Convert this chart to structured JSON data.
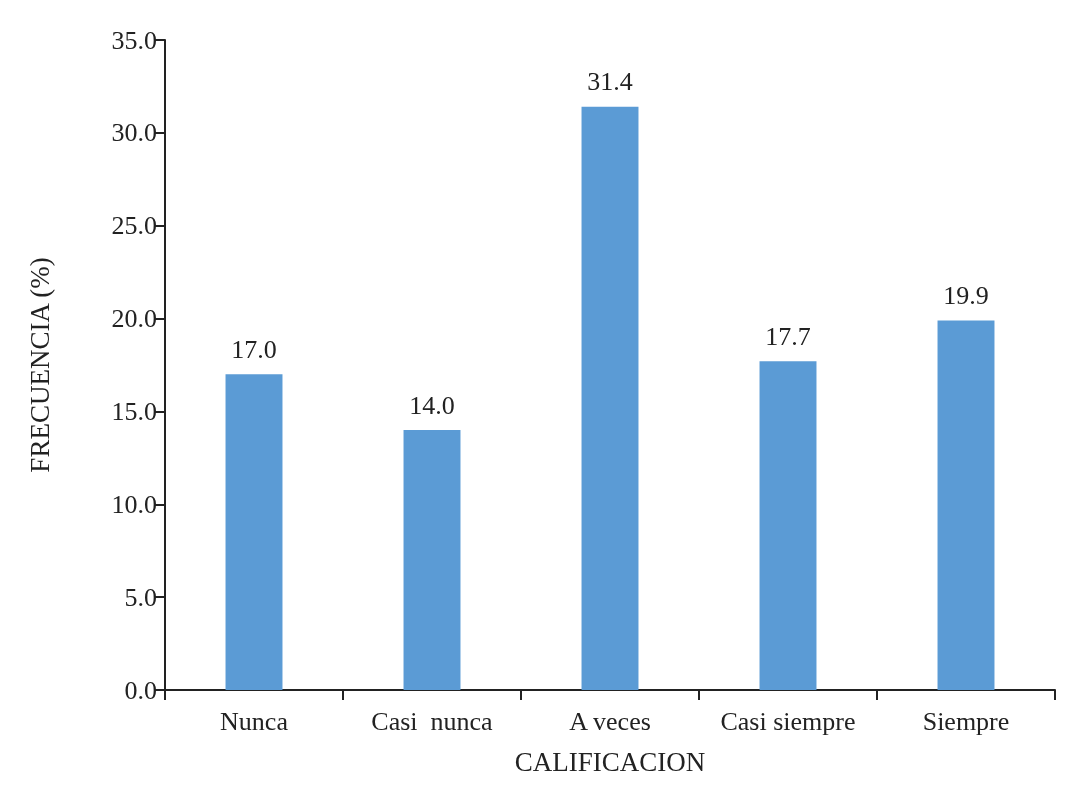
{
  "chart_data": {
    "type": "bar",
    "xlabel": "CALIFICACION",
    "ylabel": "FRECUENCIA (%)",
    "categories": [
      "Nunca",
      "Casi  nunca",
      "A veces",
      "Casi siempre",
      "Siempre"
    ],
    "values": [
      17.0,
      14.0,
      31.4,
      17.7,
      19.9
    ],
    "color": "#5b9bd5",
    "value_labels": [
      "17.0",
      "14.0",
      "31.4",
      "17.7",
      "19.9"
    ],
    "ylim": [
      0,
      35
    ],
    "yticks": [
      {
        "value": 0,
        "label": "0.0"
      },
      {
        "value": 5,
        "label": "5.0"
      },
      {
        "value": 10,
        "label": "10.0"
      },
      {
        "value": 15,
        "label": "15.0"
      },
      {
        "value": 20,
        "label": "20.0"
      },
      {
        "value": 25,
        "label": "25.0"
      },
      {
        "value": 30,
        "label": "30.0"
      },
      {
        "value": 35,
        "label": "35.0"
      }
    ],
    "grid": false
  }
}
